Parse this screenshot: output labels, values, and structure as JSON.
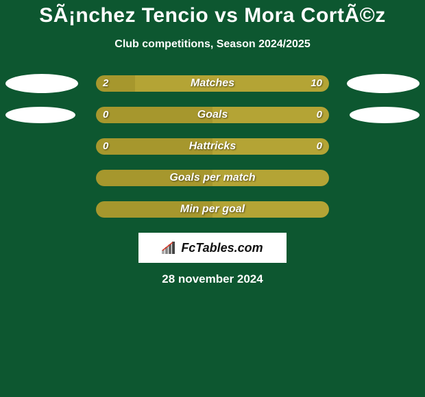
{
  "title": "SÃ¡nchez Tencio vs Mora CortÃ©z",
  "subtitle": "Club competitions, Season 2024/2025",
  "date": "28 november 2024",
  "logo_text": "FcTables.com",
  "colors": {
    "background": "#0d5730",
    "bar_a": "#a6972d",
    "bar_b": "#b4a435",
    "ellipse": "#ffffff",
    "logo_bar1": "#444444",
    "logo_bar2": "#666666",
    "logo_bar3": "#888888",
    "logo_bar4": "#aaaaaa"
  },
  "ellipse_sizes": {
    "row0": {
      "left_w": 106,
      "left_h": 28,
      "right_w": 106,
      "right_h": 28
    },
    "row1": {
      "left_w": 102,
      "left_h": 24,
      "right_w": 102,
      "right_h": 24
    }
  },
  "rows": [
    {
      "label": "Matches",
      "left_val": "2",
      "right_val": "10",
      "left_pct": 16.7,
      "right_pct": 83.3,
      "show_ellipses": true,
      "ellipse_key": "row0"
    },
    {
      "label": "Goals",
      "left_val": "0",
      "right_val": "0",
      "left_pct": 50.0,
      "right_pct": 50.0,
      "show_ellipses": true,
      "ellipse_key": "row1"
    },
    {
      "label": "Hattricks",
      "left_val": "0",
      "right_val": "0",
      "left_pct": 50.0,
      "right_pct": 50.0,
      "show_ellipses": false
    },
    {
      "label": "Goals per match",
      "left_val": "",
      "right_val": "",
      "left_pct": 50.0,
      "right_pct": 50.0,
      "show_ellipses": false
    },
    {
      "label": "Min per goal",
      "left_val": "",
      "right_val": "",
      "left_pct": 50.0,
      "right_pct": 50.0,
      "show_ellipses": false
    }
  ]
}
